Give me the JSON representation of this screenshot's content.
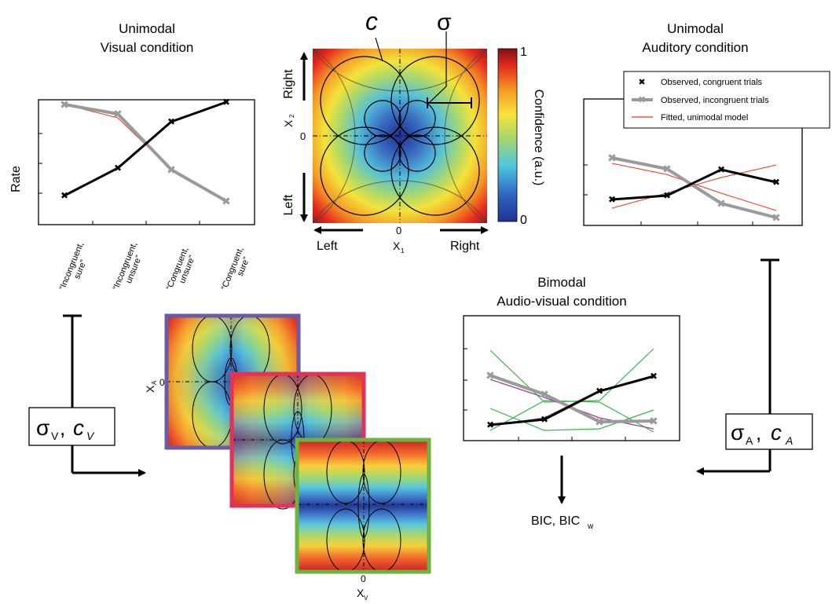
{
  "colors": {
    "congruent": "#000000",
    "incongruent": "#9a9a9a",
    "fitted": "#e8391e",
    "bimodal_green": "#39b54a",
    "bimodal_magenta": "#9b3f9b",
    "frame_purple": "#6a5aa8",
    "frame_red": "#e1325a",
    "frame_green": "#6cb33f"
  },
  "visual_panel": {
    "title_line1": "Unimodal",
    "title_line2": "Visual condition",
    "ylabel": "Rate",
    "categories": [
      "“Incongruent,",
      "sure”",
      "“Incongruent,",
      "unsure”",
      "“Congruent,",
      "unsure”",
      "“Congruent,",
      "sure”"
    ]
  },
  "center_map": {
    "c_label": "c",
    "sigma_label": "σ",
    "colorbar_label": "Confidence (a.u.)",
    "colorbar_max": "1",
    "colorbar_min": "0",
    "x_left": "Left",
    "x_right": "Right",
    "x_zero": "0",
    "x_axis": "X",
    "x_axis_sub": "1",
    "y_up": "Right",
    "y_down": "Left",
    "y_zero": "0",
    "y_axis": "X",
    "y_axis_sub": "2"
  },
  "auditory_panel": {
    "title_line1": "Unimodal",
    "title_line2": "Auditory condition",
    "legend": [
      "Observed, congruent trials",
      "Observed, incongruent trials",
      "Fitted, unimodal model"
    ]
  },
  "visual_params": {
    "sigma": "σ",
    "sub": "V",
    "c": "c",
    "c_sub": "V",
    "comma": ","
  },
  "auditory_params": {
    "sigma": "σ",
    "sub": "A",
    "c": "c",
    "c_sub": "A",
    "comma": ","
  },
  "stack": {
    "ya_label": "X",
    "ya_sub": "A",
    "ya_zero": "0",
    "xv_label": "X",
    "xv_sub": "V",
    "xv_zero": "0"
  },
  "bimodal_panel": {
    "title_line1": "Bimodal",
    "title_line2": "Audio-visual condition"
  },
  "bic": {
    "text": "BIC, BIC",
    "sub": "w"
  }
}
